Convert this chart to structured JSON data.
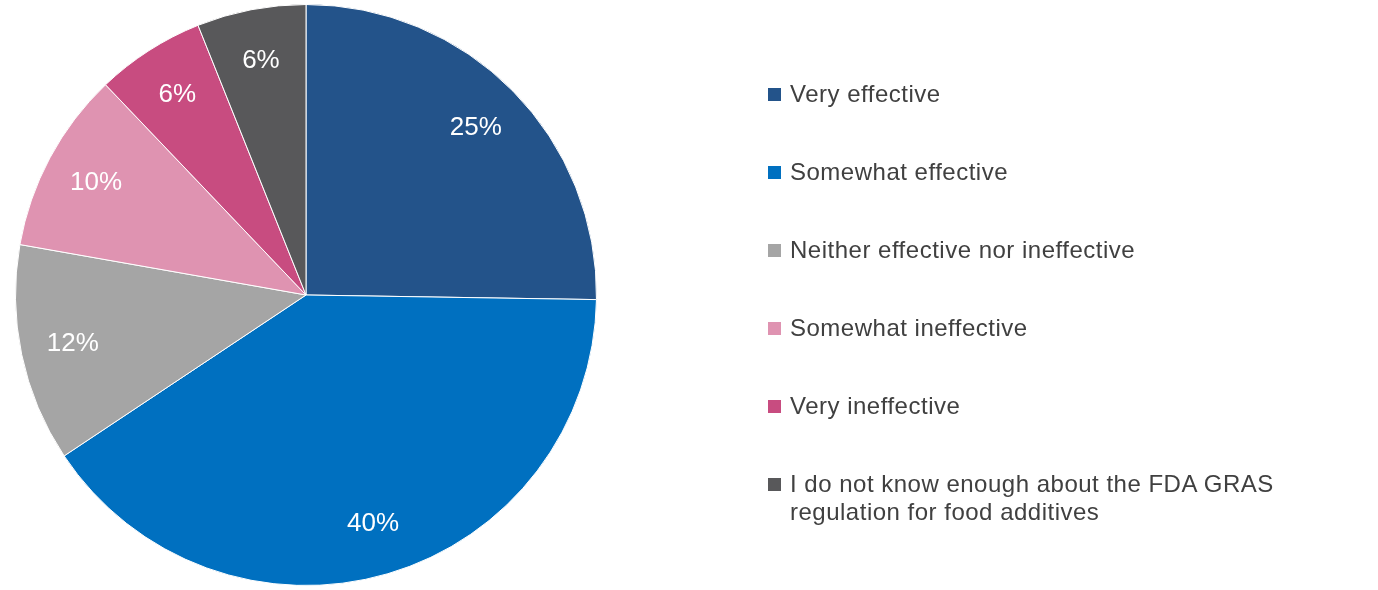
{
  "chart_data": {
    "type": "pie",
    "categories": [
      "Very effective",
      "Somewhat effective",
      "Neither effective nor ineffective",
      "Somewhat ineffective",
      "Very ineffective",
      "I do not know enough about the FDA GRAS regulation for food additives"
    ],
    "values": [
      25,
      40,
      12,
      10,
      6,
      6
    ],
    "colors": [
      "#23538a",
      "#0070c0",
      "#a5a5a5",
      "#df93b1",
      "#c84c80",
      "#58585a"
    ],
    "value_labels": [
      "25%",
      "40%",
      "12%",
      "10%",
      "6%",
      "6%"
    ],
    "legend": "right"
  }
}
